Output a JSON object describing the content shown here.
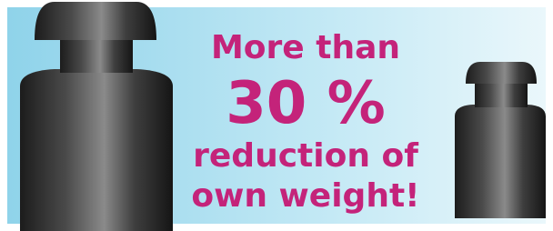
{
  "headline": {
    "line1": "More than",
    "line2": "30 %",
    "line3": "reduction of",
    "line4": "own weight!"
  }
}
